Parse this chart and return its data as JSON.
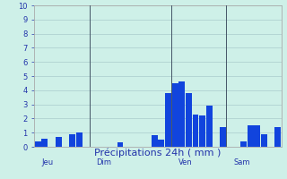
{
  "xlabel": "Précipitations 24h ( mm )",
  "ylim": [
    0,
    10
  ],
  "background_color": "#cef0e8",
  "bar_color": "#1144dd",
  "grid_color": "#aacccc",
  "text_color": "#2233aa",
  "day_labels": [
    "Jeu",
    "Dim",
    "Ven",
    "Sam"
  ],
  "num_bars": 36,
  "bar_values": [
    0.4,
    0.6,
    0.0,
    0.7,
    0.0,
    0.9,
    1.0,
    0.0,
    0.0,
    0.0,
    0.0,
    0.0,
    0.3,
    0.0,
    0.0,
    0.0,
    0.0,
    0.8,
    0.5,
    3.8,
    4.5,
    4.6,
    3.8,
    2.3,
    2.2,
    2.9,
    0.0,
    1.4,
    0.0,
    0.0,
    0.4,
    1.5,
    1.5,
    0.9,
    0.0,
    1.4
  ],
  "vline_positions": [
    7.5,
    19.5,
    27.5
  ],
  "vline_color": "#445566",
  "tick_fontsize": 6,
  "label_fontsize": 8,
  "yticks": [
    0,
    1,
    2,
    3,
    4,
    5,
    6,
    7,
    8,
    9,
    10
  ]
}
